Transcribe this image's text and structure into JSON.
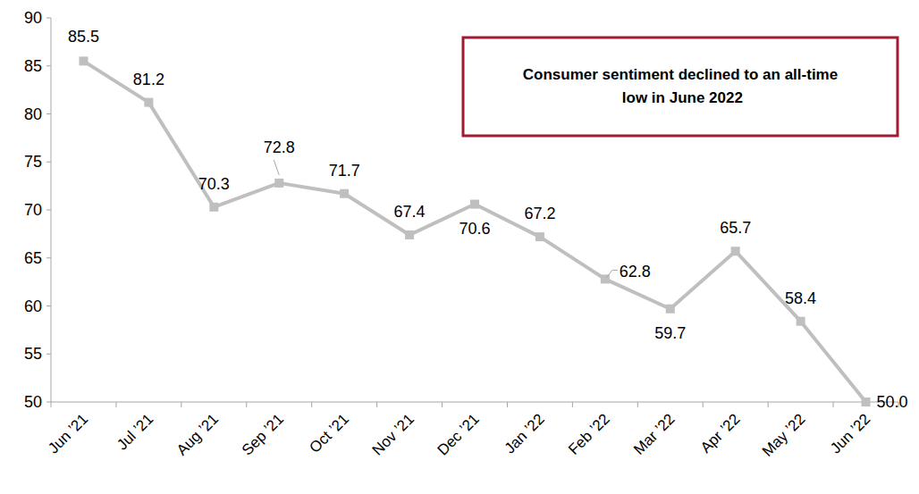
{
  "chart_data": {
    "type": "line",
    "annotation": "Consumer sentiment declined to an all-time low in June 2022",
    "categories": [
      "Jun ’21",
      "Jul ’21",
      "Aug ’21",
      "Sep ’21",
      "Oct ’21",
      "Nov ’21",
      "Dec ’21",
      "Jan ’22",
      "Feb ’22",
      "Mar ’22",
      "Apr ’22",
      "May ’22",
      "Jun ’22"
    ],
    "values": [
      85.5,
      81.2,
      70.3,
      72.8,
      71.7,
      67.4,
      70.6,
      67.2,
      62.8,
      59.7,
      65.7,
      58.4,
      50.0
    ],
    "value_labels": [
      "85.5",
      "81.2",
      "70.3",
      "72.8",
      "71.7",
      "67.4",
      "70.6",
      "67.2",
      "62.8",
      "59.7",
      "65.7",
      "58.4",
      "50.0"
    ],
    "color": "#bfbfbf",
    "marker": "square",
    "ylim": [
      50,
      90
    ],
    "yticks": [
      50,
      55,
      60,
      65,
      70,
      75,
      80,
      85,
      90
    ],
    "grid": false,
    "data_labels": true
  }
}
